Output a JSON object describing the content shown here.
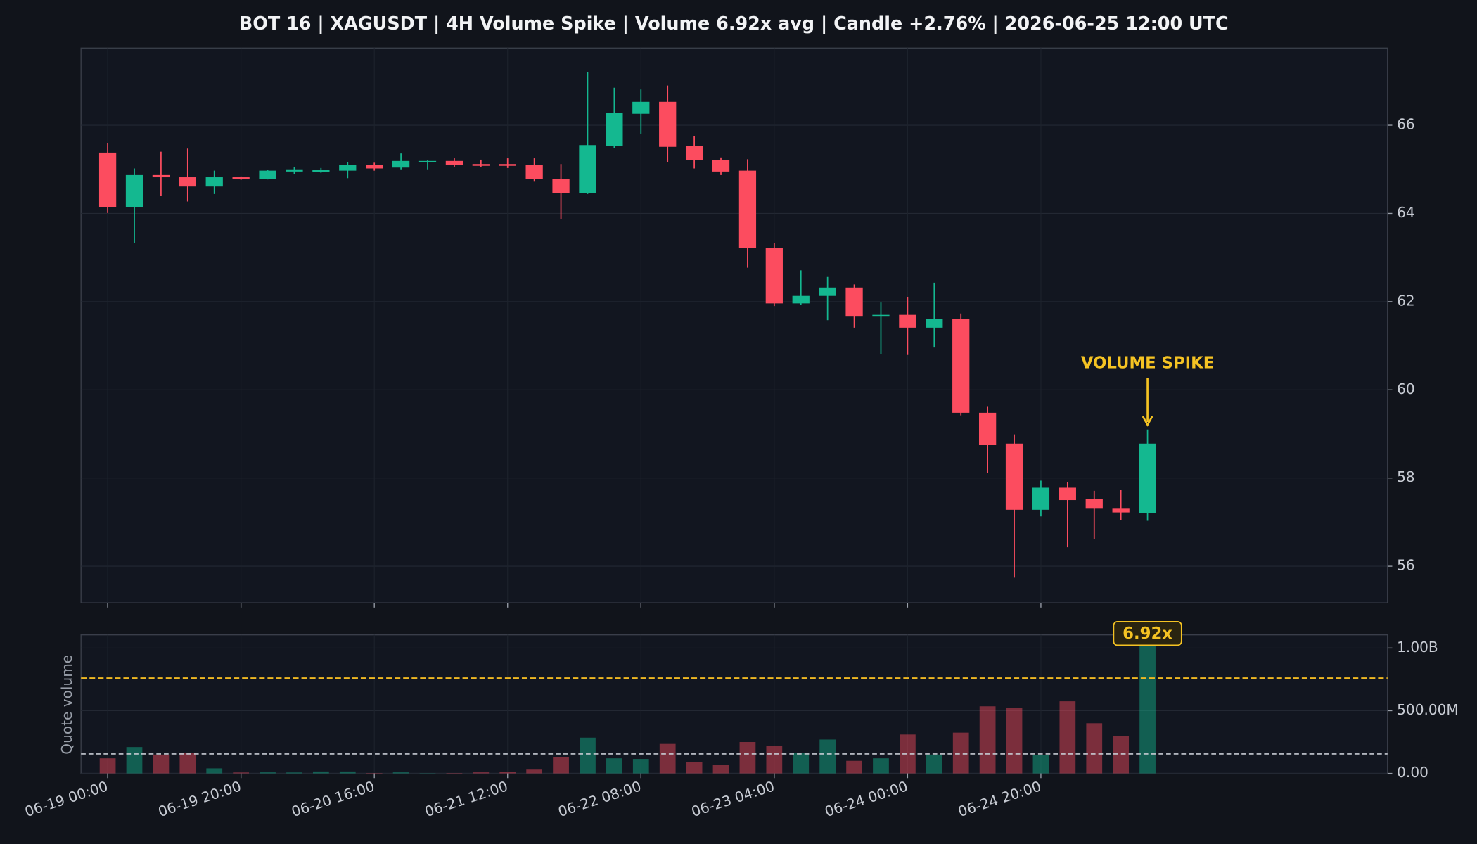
{
  "chart_data": {
    "type": "candlestick",
    "title": "BOT 16 | XAGUSDT | 4H Volume Spike | Volume 6.92x avg | Candle +2.76% | 2026-06-25 12:00 UTC",
    "categories": [
      "06-19 00:00",
      null,
      null,
      null,
      null,
      "06-19 20:00",
      null,
      null,
      null,
      null,
      "06-20 16:00",
      null,
      null,
      null,
      null,
      "06-21 12:00",
      null,
      null,
      null,
      null,
      "06-22 08:00",
      null,
      null,
      null,
      null,
      "06-23 04:00",
      null,
      null,
      null,
      null,
      "06-24 00:00",
      null,
      null,
      null,
      null,
      "06-24 20:00",
      null,
      null,
      null,
      null
    ],
    "open": [
      65.38,
      64.14,
      64.87,
      64.82,
      64.61,
      64.82,
      64.78,
      64.95,
      64.94,
      64.97,
      65.1,
      65.04,
      65.17,
      65.19,
      65.12,
      65.12,
      65.1,
      64.78,
      64.46,
      65.53,
      66.26,
      66.53,
      65.53,
      65.21,
      64.97,
      63.22,
      61.96,
      62.13,
      62.32,
      61.66,
      61.7,
      61.41,
      61.6,
      59.48,
      58.78,
      57.28,
      57.78,
      57.52,
      57.32,
      57.2
    ],
    "high": [
      65.59,
      65.02,
      65.4,
      65.47,
      64.97,
      64.84,
      64.98,
      65.06,
      65.03,
      65.17,
      65.15,
      65.36,
      65.21,
      65.25,
      65.22,
      65.25,
      65.25,
      65.12,
      67.2,
      66.85,
      66.81,
      66.9,
      65.76,
      65.27,
      65.23,
      63.33,
      62.71,
      62.56,
      62.39,
      61.98,
      62.11,
      62.43,
      61.73,
      59.63,
      58.99,
      57.94,
      57.9,
      57.71,
      57.74,
      59.1
    ],
    "low": [
      64.01,
      63.33,
      64.4,
      64.27,
      64.44,
      64.76,
      64.77,
      64.89,
      64.92,
      64.8,
      64.97,
      65.0,
      65.0,
      65.06,
      65.06,
      65.03,
      64.72,
      63.88,
      64.44,
      65.49,
      65.81,
      65.17,
      65.02,
      64.87,
      62.77,
      61.9,
      61.92,
      61.58,
      61.41,
      60.81,
      60.79,
      60.96,
      59.42,
      58.12,
      55.74,
      57.13,
      56.43,
      56.62,
      57.05,
      57.03
    ],
    "close": [
      64.14,
      64.87,
      64.82,
      64.61,
      64.82,
      64.78,
      64.97,
      65.0,
      64.99,
      65.1,
      65.02,
      65.19,
      65.19,
      65.1,
      65.08,
      65.08,
      64.78,
      64.46,
      65.55,
      66.28,
      66.53,
      65.51,
      65.21,
      64.95,
      63.22,
      61.96,
      62.13,
      62.32,
      61.66,
      61.7,
      61.41,
      61.6,
      59.48,
      58.76,
      57.28,
      57.78,
      57.5,
      57.32,
      57.22,
      58.78
    ],
    "volume": [
      120000000,
      210000000,
      150000000,
      165000000,
      40000000,
      7000000,
      8000000,
      7000000,
      15000000,
      15000000,
      3000000,
      8000000,
      2000000,
      3000000,
      8000000,
      10000000,
      30000000,
      130000000,
      285000000,
      120000000,
      115000000,
      235000000,
      90000000,
      70000000,
      250000000,
      220000000,
      165000000,
      270000000,
      100000000,
      120000000,
      310000000,
      150000000,
      325000000,
      535000000,
      520000000,
      145000000,
      575000000,
      400000000,
      300000000,
      1070000000
    ],
    "up_color": "#14b890",
    "down_color": "#fc4c5f",
    "xlim": [
      -1,
      48
    ],
    "ylim": [
      55.17,
      67.75
    ],
    "yticks": [
      56,
      58,
      60,
      62,
      64,
      66
    ],
    "volume_ylabel": "Quote volume",
    "volume_ylim": [
      0,
      1105000000
    ],
    "volume_yticks": [
      {
        "value": 0,
        "label": "0.00"
      },
      {
        "value": 500000000,
        "label": "500.00M"
      },
      {
        "value": 1000000000,
        "label": "1.00B"
      }
    ],
    "avg_volume": 155000000,
    "avg_color": "#c7cbd3",
    "threshold_volume": 760000000,
    "threshold_color": "#f0b922",
    "annotation": "VOLUME SPIKE",
    "spike_label": "6.92x",
    "annotation_color": "#f5c323",
    "grid": true
  }
}
